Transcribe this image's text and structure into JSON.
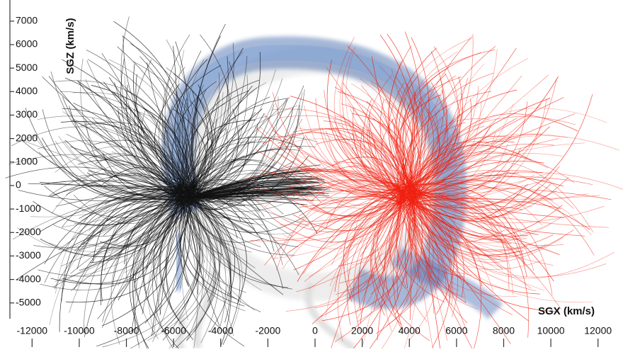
{
  "chart_data": {
    "type": "streamlines",
    "x_label": "SGX (km/s)",
    "y_label": "SGZ (km/s)",
    "xlim": [
      -13000,
      13000
    ],
    "xticks": [
      -12000,
      -10000,
      -8000,
      -6000,
      -4000,
      -2000,
      0,
      2000,
      4000,
      6000,
      8000,
      10000,
      12000
    ],
    "ylim": [
      -5400,
      7900
    ],
    "yticks": [
      7000,
      6000,
      5000,
      4000,
      3000,
      2000,
      1000,
      0,
      -1000,
      -2000,
      -3000,
      -4000,
      -5000
    ]
  }
}
